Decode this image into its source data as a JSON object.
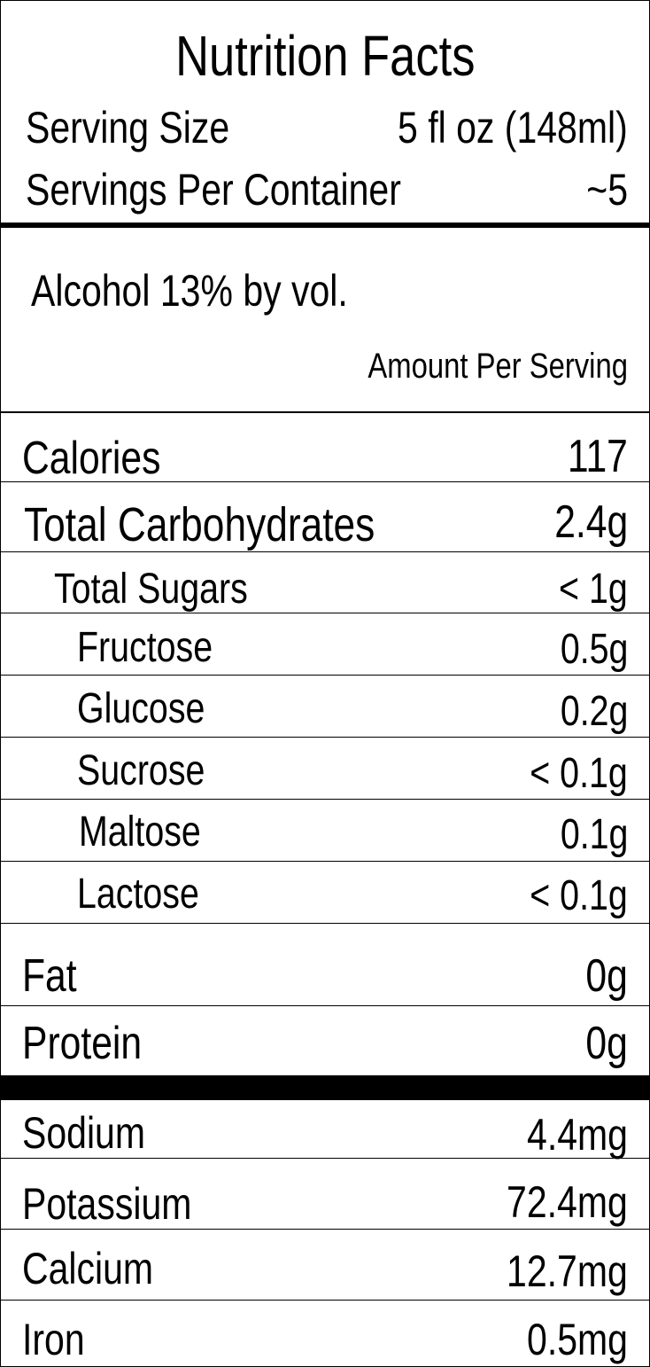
{
  "label": {
    "title": "Nutrition Facts",
    "serving_size_label": "Serving Size",
    "serving_size_value": "5 fl oz (148ml)",
    "servings_label": "Servings Per Container",
    "servings_value": "~5",
    "alcohol": "Alcohol 13% by vol.",
    "amount_per_serving": "Amount Per Serving"
  },
  "rows": [
    {
      "label": "Calories",
      "value": "117"
    },
    {
      "label": "Total Carbohydrates",
      "value": "2.4g"
    },
    {
      "label": "Total Sugars",
      "value": "< 1g"
    },
    {
      "label": "Fructose",
      "value": "0.5g"
    },
    {
      "label": "Glucose",
      "value": "0.2g"
    },
    {
      "label": "Sucrose",
      "value": "< 0.1g"
    },
    {
      "label": "Maltose",
      "value": "0.1g"
    },
    {
      "label": "Lactose",
      "value": "< 0.1g"
    },
    {
      "label": "Fat",
      "value": "0g"
    },
    {
      "label": "Protein",
      "value": "0g"
    },
    {
      "label": "Sodium",
      "value": "4.4mg"
    },
    {
      "label": "Potassium",
      "value": "72.4mg"
    },
    {
      "label": "Calcium",
      "value": "12.7mg"
    },
    {
      "label": "Iron",
      "value": "0.5mg"
    }
  ]
}
